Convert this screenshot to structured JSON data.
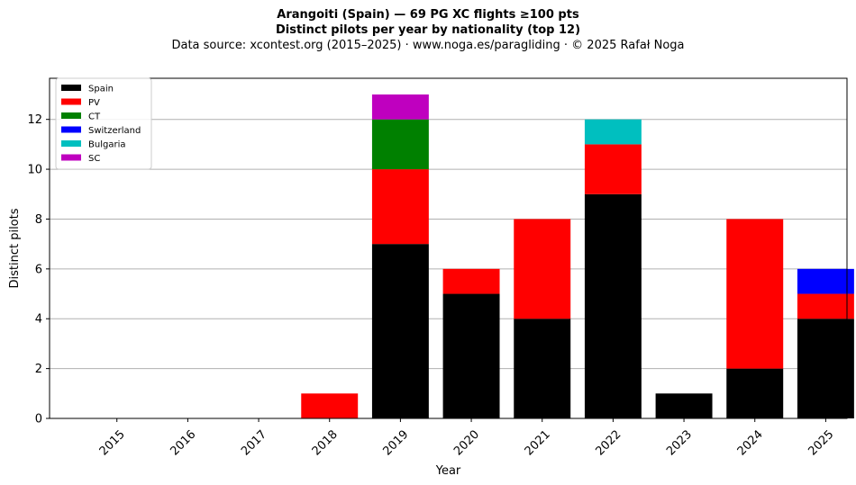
{
  "chart_data": {
    "type": "bar",
    "stacked": true,
    "title": "Arangoiti (Spain)  —  69 PG XC flights ≥100 pts",
    "subtitle": "Distinct pilots per year by nationality (top 12)",
    "source_line": "Data source: xcontest.org (2015–2025)  ·  www.noga.es/paragliding  ·  © 2025 Rafał Noga",
    "xlabel": "Year",
    "ylabel": "Distinct pilots",
    "categories": [
      "2015",
      "2016",
      "2017",
      "2018",
      "2019",
      "2020",
      "2021",
      "2022",
      "2023",
      "2024",
      "2025"
    ],
    "ylim": [
      0,
      13.65
    ],
    "yticks": [
      0,
      2,
      4,
      6,
      8,
      10,
      12
    ],
    "grid": "y",
    "legend_position": "top-left",
    "series": [
      {
        "name": "Spain",
        "color": "#000000",
        "values": [
          0,
          0,
          0,
          0,
          7,
          5,
          4,
          9,
          1,
          2,
          4
        ]
      },
      {
        "name": "PV",
        "color": "#ff0000",
        "values": [
          0,
          0,
          0,
          1,
          3,
          1,
          4,
          2,
          0,
          6,
          1
        ]
      },
      {
        "name": "CT",
        "color": "#008000",
        "values": [
          0,
          0,
          0,
          0,
          2,
          0,
          0,
          0,
          0,
          0,
          0
        ]
      },
      {
        "name": "Switzerland",
        "color": "#0000ff",
        "values": [
          0,
          0,
          0,
          0,
          0,
          0,
          0,
          0,
          0,
          0,
          1
        ]
      },
      {
        "name": "Bulgaria",
        "color": "#00bfbf",
        "values": [
          0,
          0,
          0,
          0,
          0,
          0,
          0,
          1,
          0,
          0,
          0
        ]
      },
      {
        "name": "SC",
        "color": "#bf00bf",
        "values": [
          0,
          0,
          0,
          0,
          1,
          0,
          0,
          0,
          0,
          0,
          0
        ]
      }
    ]
  }
}
